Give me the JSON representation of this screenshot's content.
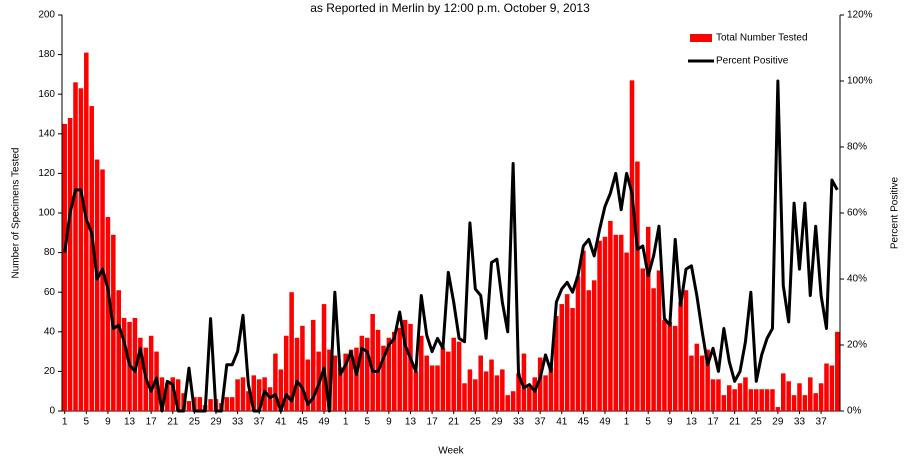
{
  "chart_data": {
    "type": "bar",
    "title": "as Reported in Merlin by 12:00 p.m. October 9, 2013",
    "x_label": "Week",
    "y_label": "Number of Specimens Tested",
    "y2_label": "Percent Positive",
    "legend": "top-right",
    "categories": [
      "1",
      null,
      null,
      null,
      "5",
      null,
      null,
      null,
      "9",
      null,
      null,
      null,
      "13",
      null,
      null,
      null,
      "17",
      null,
      null,
      null,
      "21",
      null,
      null,
      null,
      "25",
      null,
      null,
      null,
      "29",
      null,
      null,
      null,
      "33",
      null,
      null,
      null,
      "37",
      null,
      null,
      null,
      "41",
      null,
      null,
      null,
      "45",
      null,
      null,
      null,
      "49",
      null,
      null,
      null,
      "1",
      null,
      null,
      null,
      "5",
      null,
      null,
      null,
      "9",
      null,
      null,
      null,
      "13",
      null,
      null,
      null,
      "17",
      null,
      null,
      null,
      "21",
      null,
      null,
      null,
      "25",
      null,
      null,
      null,
      "29",
      null,
      null,
      null,
      "33",
      null,
      null,
      null,
      "37",
      null,
      null,
      null,
      "41",
      null,
      null,
      null,
      "45",
      null,
      null,
      null,
      "49",
      null,
      null,
      null,
      "1",
      null,
      null,
      null,
      "5",
      null,
      null,
      null,
      "9",
      null,
      null,
      null,
      "13",
      null,
      null,
      null,
      "17",
      null,
      null,
      null,
      "21",
      null,
      null,
      null,
      "25",
      null,
      null,
      null,
      "29",
      null,
      null,
      null,
      "33",
      null,
      null,
      null,
      "37",
      null,
      null,
      null
    ],
    "series": [
      {
        "name": "Total Number Tested",
        "type": "bar",
        "color": "#ff0000",
        "values": [
          145,
          148,
          166,
          163,
          181,
          154,
          127,
          122,
          98,
          89,
          61,
          47,
          45,
          47,
          37,
          32,
          38,
          30,
          17,
          14,
          17,
          16,
          9,
          5,
          7,
          7,
          3,
          6,
          6,
          4,
          7,
          7,
          16,
          17,
          10,
          18,
          16,
          17,
          12,
          29,
          21,
          38,
          60,
          37,
          43,
          26,
          46,
          30,
          54,
          31,
          28,
          22,
          29,
          31,
          32,
          38,
          37,
          49,
          41,
          33,
          37,
          40,
          42,
          46,
          44,
          20,
          38,
          28,
          23,
          23,
          32,
          30,
          37,
          35,
          14,
          21,
          16,
          28,
          20,
          26,
          18,
          21,
          8,
          10,
          19,
          29,
          12,
          17,
          27,
          18,
          22,
          48,
          54,
          59,
          52,
          68,
          81,
          61,
          66,
          86,
          88,
          96,
          89,
          89,
          80,
          167,
          126,
          72,
          93,
          62,
          71,
          46,
          45,
          43,
          55,
          61,
          28,
          34,
          28,
          31,
          16,
          16,
          8,
          13,
          11,
          14,
          17,
          11,
          11,
          11,
          11,
          11,
          2,
          19,
          15,
          8,
          14,
          8,
          17,
          9,
          14,
          24,
          23,
          40
        ]
      },
      {
        "name": "Percent Positive",
        "type": "line",
        "axis": "y2",
        "color": "#000000",
        "values": [
          48,
          60,
          67,
          67,
          58,
          54,
          40,
          43,
          37,
          25,
          26,
          21,
          14,
          12,
          19,
          10,
          6,
          10,
          0,
          9,
          8,
          0,
          0,
          13,
          0,
          0,
          0,
          28,
          0,
          0,
          14,
          14,
          18,
          29,
          8,
          0,
          0,
          6,
          4,
          5,
          0,
          5,
          3,
          9,
          7,
          2,
          4,
          8,
          13,
          0,
          36,
          11,
          14,
          18,
          11,
          19,
          18,
          12,
          12,
          16,
          20,
          22,
          30,
          20,
          16,
          12,
          35,
          23,
          18,
          22,
          19,
          42,
          33,
          22,
          21,
          57,
          37,
          35,
          22,
          45,
          46,
          33,
          24,
          75,
          11,
          7,
          8,
          6,
          10,
          17,
          12,
          33,
          37,
          39,
          36,
          41,
          50,
          52,
          47,
          55,
          62,
          66,
          72,
          61,
          72,
          66,
          49,
          50,
          41,
          47,
          56,
          28,
          26,
          52,
          32,
          43,
          44,
          35,
          24,
          14,
          19,
          12,
          25,
          15,
          9,
          12,
          21,
          36,
          9,
          17,
          22,
          25,
          100,
          38,
          27,
          63,
          43,
          63,
          35,
          56,
          35,
          25,
          70,
          67
        ]
      }
    ],
    "ylim": [
      0,
      200
    ],
    "yticks": [
      0,
      20,
      40,
      60,
      80,
      100,
      120,
      140,
      160,
      180,
      200
    ],
    "y2lim": [
      0,
      120
    ],
    "y2ticks": [
      {
        "value": 0,
        "label": "0%"
      },
      {
        "value": 20,
        "label": "20%"
      },
      {
        "value": 40,
        "label": "40%"
      },
      {
        "value": 60,
        "label": "60%"
      },
      {
        "value": 80,
        "label": "80%"
      },
      {
        "value": 100,
        "label": "100%"
      },
      {
        "value": 120,
        "label": "120%"
      }
    ],
    "grid": false
  }
}
